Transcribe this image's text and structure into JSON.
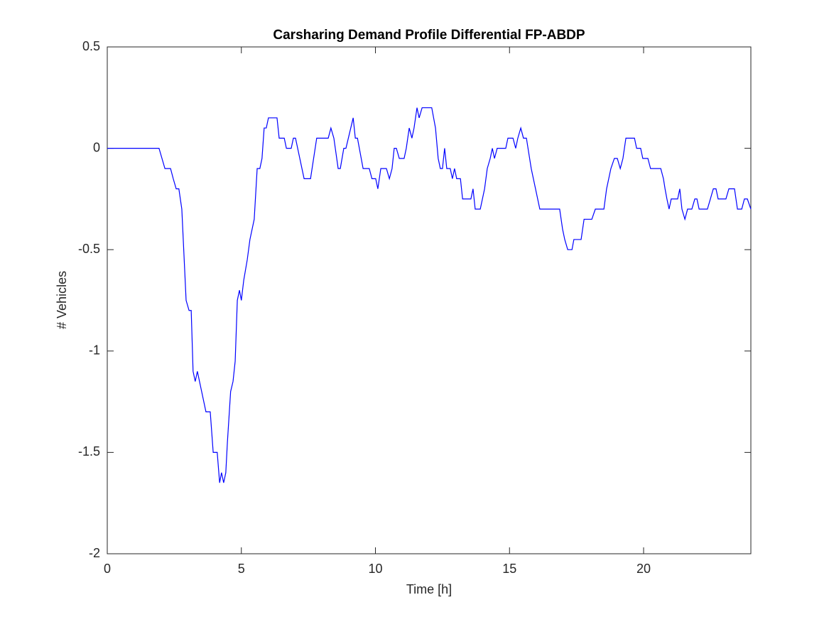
{
  "chart_data": {
    "type": "line",
    "title": "Carsharing Demand Profile Differential FP-ABDP",
    "xlabel": "Time [h]",
    "ylabel": "# Vehicles",
    "xlim": [
      0,
      24
    ],
    "ylim": [
      -2,
      0.5
    ],
    "xticks": [
      0,
      5,
      10,
      15,
      20
    ],
    "yticks": [
      -2,
      -1.5,
      -1,
      -0.5,
      0,
      0.5
    ],
    "series": [
      {
        "name": "FP-ABDP",
        "color": "#0000ff",
        "x": [
          0,
          1.93,
          2.15,
          2.36,
          2.46,
          2.57,
          2.67,
          2.78,
          2.94,
          3.05,
          3.13,
          3.2,
          3.28,
          3.36,
          3.68,
          3.84,
          3.95,
          4.1,
          4.19,
          4.26,
          4.34,
          4.42,
          4.48,
          4.6,
          4.69,
          4.77,
          4.85,
          4.93,
          5.0,
          5.09,
          5.22,
          5.32,
          5.48,
          5.59,
          5.69,
          5.77,
          5.85,
          5.93,
          6.01,
          6.33,
          6.41,
          6.6,
          6.68,
          6.86,
          6.94,
          7.02,
          7.34,
          7.58,
          7.81,
          8.24,
          8.34,
          8.45,
          8.61,
          8.69,
          8.82,
          8.9,
          9.17,
          9.25,
          9.33,
          9.54,
          9.77,
          9.87,
          10.01,
          10.09,
          10.2,
          10.41,
          10.52,
          10.62,
          10.7,
          10.78,
          10.89,
          11.07,
          11.15,
          11.26,
          11.36,
          11.44,
          11.55,
          11.63,
          11.74,
          12.1,
          12.24,
          12.34,
          12.42,
          12.5,
          12.58,
          12.66,
          12.79,
          12.87,
          12.95,
          13.03,
          13.17,
          13.25,
          13.56,
          13.64,
          13.72,
          13.91,
          14.07,
          14.17,
          14.28,
          14.36,
          14.44,
          14.54,
          14.86,
          14.94,
          15.13,
          15.23,
          15.31,
          15.42,
          15.52,
          15.63,
          15.81,
          15.97,
          16.13,
          16.87,
          16.98,
          17.06,
          17.17,
          17.33,
          17.4,
          17.67,
          17.78,
          18.07,
          18.2,
          18.52,
          18.62,
          18.78,
          18.91,
          19.02,
          19.13,
          19.23,
          19.34,
          19.66,
          19.74,
          19.89,
          19.97,
          20.16,
          20.26,
          20.64,
          20.74,
          20.8,
          20.87,
          20.95,
          21.03,
          21.27,
          21.35,
          21.43,
          21.54,
          21.64,
          21.8,
          21.91,
          21.99,
          22.07,
          22.38,
          22.49,
          22.6,
          22.7,
          22.78,
          23.07,
          23.18,
          23.39,
          23.5,
          23.66,
          23.76,
          23.87,
          24
        ],
        "values": [
          0,
          0,
          -0.1,
          -0.1,
          -0.15,
          -0.2,
          -0.2,
          -0.3,
          -0.75,
          -0.8,
          -0.8,
          -1.1,
          -1.15,
          -1.1,
          -1.3,
          -1.3,
          -1.5,
          -1.5,
          -1.65,
          -1.6,
          -1.65,
          -1.6,
          -1.45,
          -1.2,
          -1.15,
          -1.05,
          -0.75,
          -0.7,
          -0.75,
          -0.65,
          -0.55,
          -0.45,
          -0.35,
          -0.1,
          -0.1,
          -0.05,
          0.1,
          0.1,
          0.15,
          0.15,
          0.05,
          0.05,
          0,
          0,
          0.05,
          0.05,
          -0.15,
          -0.15,
          0.05,
          0.05,
          0.1,
          0.05,
          -0.1,
          -0.1,
          0,
          0,
          0.15,
          0.05,
          0.05,
          -0.1,
          -0.1,
          -0.15,
          -0.15,
          -0.2,
          -0.1,
          -0.1,
          -0.15,
          -0.1,
          0,
          0,
          -0.05,
          -0.05,
          0,
          0.1,
          0.05,
          0.1,
          0.2,
          0.15,
          0.2,
          0.2,
          0.1,
          -0.05,
          -0.1,
          -0.1,
          0,
          -0.1,
          -0.1,
          -0.15,
          -0.1,
          -0.15,
          -0.15,
          -0.25,
          -0.25,
          -0.2,
          -0.3,
          -0.3,
          -0.2,
          -0.1,
          -0.05,
          0,
          -0.05,
          0,
          0,
          0.05,
          0.05,
          0,
          0.05,
          0.1,
          0.05,
          0.05,
          -0.1,
          -0.2,
          -0.3,
          -0.3,
          -0.4,
          -0.45,
          -0.5,
          -0.5,
          -0.45,
          -0.45,
          -0.35,
          -0.35,
          -0.3,
          -0.3,
          -0.2,
          -0.1,
          -0.05,
          -0.05,
          -0.1,
          -0.05,
          0.05,
          0.05,
          0,
          0,
          -0.05,
          -0.05,
          -0.1,
          -0.1,
          -0.15,
          -0.2,
          -0.25,
          -0.3,
          -0.25,
          -0.25,
          -0.2,
          -0.3,
          -0.35,
          -0.3,
          -0.3,
          -0.25,
          -0.25,
          -0.3,
          -0.3,
          -0.25,
          -0.2,
          -0.2,
          -0.25,
          -0.25,
          -0.2,
          -0.2,
          -0.3,
          -0.3,
          -0.25,
          -0.25,
          -0.3
        ]
      }
    ]
  }
}
